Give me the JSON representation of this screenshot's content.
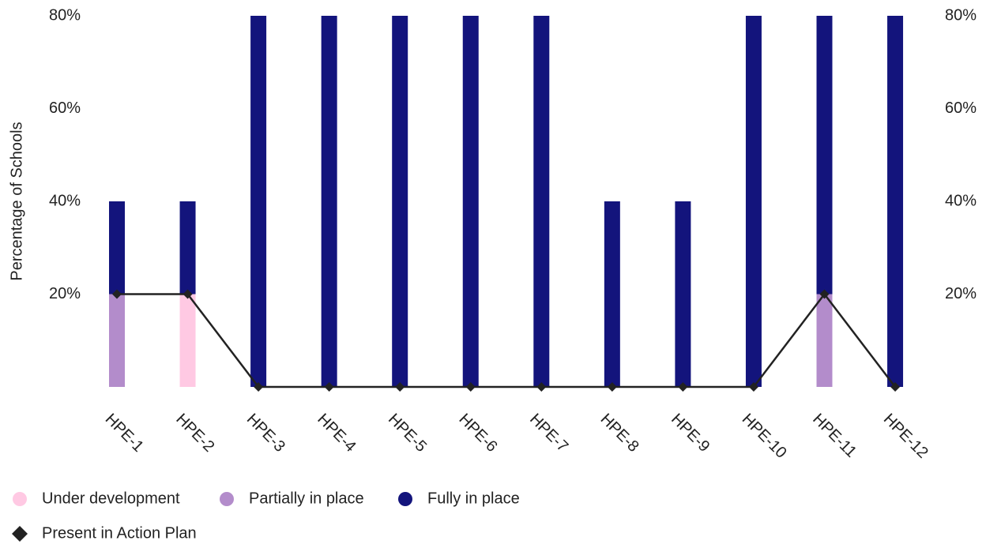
{
  "chart_data": {
    "type": "bar",
    "stacked": true,
    "y_label": "Percentage of Schools",
    "categories": [
      "HPE-1",
      "HPE-2",
      "HPE-3",
      "HPE-4",
      "HPE-5",
      "HPE-6",
      "HPE-7",
      "HPE-8",
      "HPE-9",
      "HPE-10",
      "HPE-11",
      "HPE-12"
    ],
    "series": [
      {
        "name": "Under development",
        "color": "#ffc9e3",
        "values": [
          0,
          20,
          0,
          0,
          0,
          0,
          0,
          0,
          0,
          0,
          0,
          0
        ]
      },
      {
        "name": "Partially in place",
        "color": "#b38ccb",
        "values": [
          20,
          0,
          0,
          0,
          0,
          0,
          0,
          0,
          0,
          0,
          20,
          0
        ]
      },
      {
        "name": "Fully in place",
        "color": "#13147c",
        "values": [
          20,
          20,
          80,
          80,
          80,
          80,
          80,
          40,
          40,
          80,
          60,
          80
        ]
      },
      {
        "name": "Present in Action Plan",
        "type": "line",
        "color": "#222222",
        "values": [
          20,
          20,
          0,
          0,
          0,
          0,
          0,
          0,
          0,
          0,
          20,
          0
        ]
      }
    ],
    "ylim": [
      0,
      80
    ],
    "yticks": [
      {
        "value": 20,
        "label": "20%"
      },
      {
        "value": 40,
        "label": "40%"
      },
      {
        "value": 60,
        "label": "60%"
      },
      {
        "value": 80,
        "label": "80%"
      }
    ],
    "y2lim": [
      0,
      80
    ],
    "y2ticks": [
      {
        "value": 20,
        "label": "20%"
      },
      {
        "value": 40,
        "label": "40%"
      },
      {
        "value": 60,
        "label": "60%"
      },
      {
        "value": 80,
        "label": "80%"
      }
    ],
    "grid": false,
    "legend": "bottom"
  }
}
